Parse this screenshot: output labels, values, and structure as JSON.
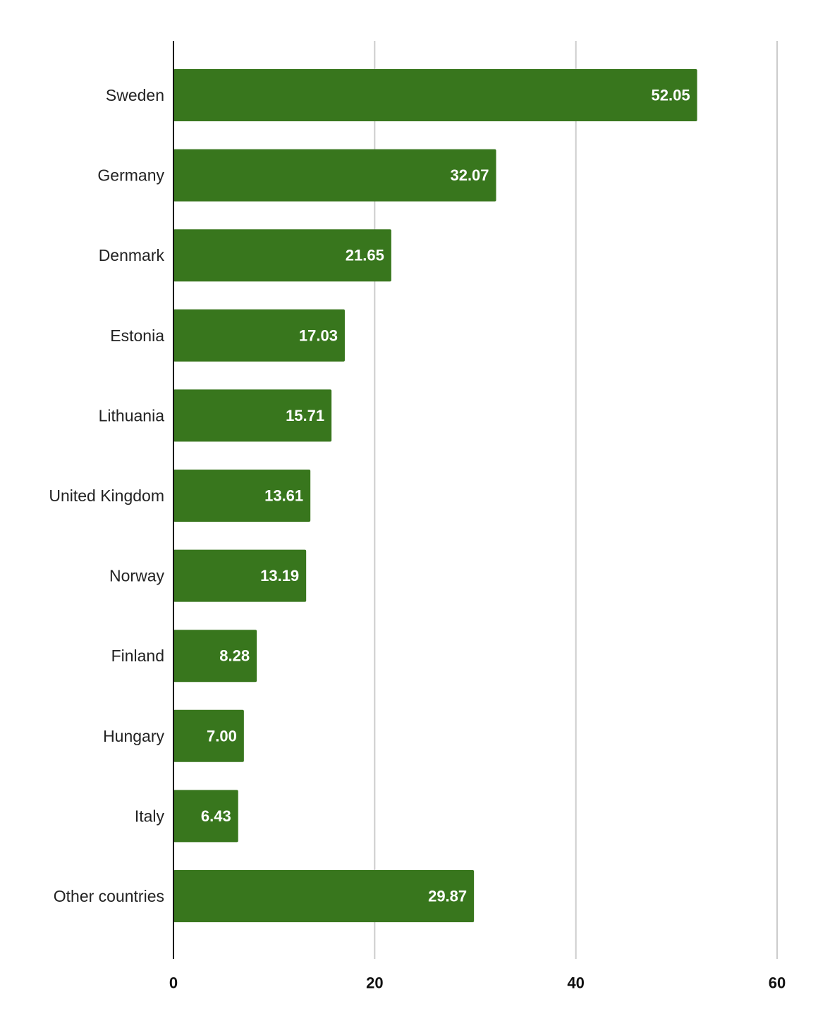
{
  "chart_data": {
    "type": "bar",
    "orientation": "horizontal",
    "title": "",
    "xlabel": "",
    "ylabel": "",
    "categories": [
      "Sweden",
      "Germany",
      "Denmark",
      "Estonia",
      "Lithuania",
      "United Kingdom",
      "Norway",
      "Finland",
      "Hungary",
      "Italy",
      "Other countries"
    ],
    "values": [
      52.05,
      32.07,
      21.65,
      17.03,
      15.71,
      13.61,
      13.19,
      8.28,
      7.0,
      6.43,
      29.87
    ],
    "value_labels": [
      "52.05",
      "32.07",
      "21.65",
      "17.03",
      "15.71",
      "13.61",
      "13.19",
      "8.28",
      "7.00",
      "6.43",
      "29.87"
    ],
    "xlim": [
      0,
      60
    ],
    "xticks": [
      0,
      20,
      40,
      60
    ],
    "xtick_labels": [
      "0",
      "20",
      "40",
      "60"
    ],
    "grid": true,
    "legend": "none",
    "colors": {
      "bar": "#38761d",
      "grid": "#cccccc",
      "axis": "#000000",
      "value_label": "#ffffff"
    }
  }
}
